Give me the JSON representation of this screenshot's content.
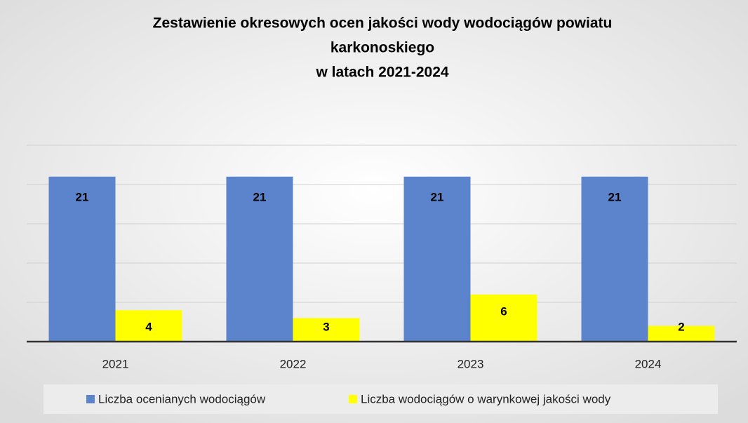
{
  "chart_data": {
    "type": "bar",
    "title": [
      "Zestawienie okresowych ocen jakości wody wodociągów powiatu",
      "karkonoskiego",
      "w latach 2021-2024"
    ],
    "categories": [
      "2021",
      "2022",
      "2023",
      "2024"
    ],
    "series": [
      {
        "name": "Liczba ocenianych wodociągów",
        "color": "#5b84cc",
        "values": [
          21,
          21,
          21,
          21
        ]
      },
      {
        "name": "Liczba wodociągów o warynkowej jakości wody",
        "color": "#ffff00",
        "values": [
          4,
          3,
          6,
          2
        ]
      }
    ],
    "ylim": [
      0,
      25
    ],
    "yticks": [
      0,
      5,
      10,
      15,
      20,
      25
    ],
    "grid": true,
    "legend": "bottom"
  }
}
